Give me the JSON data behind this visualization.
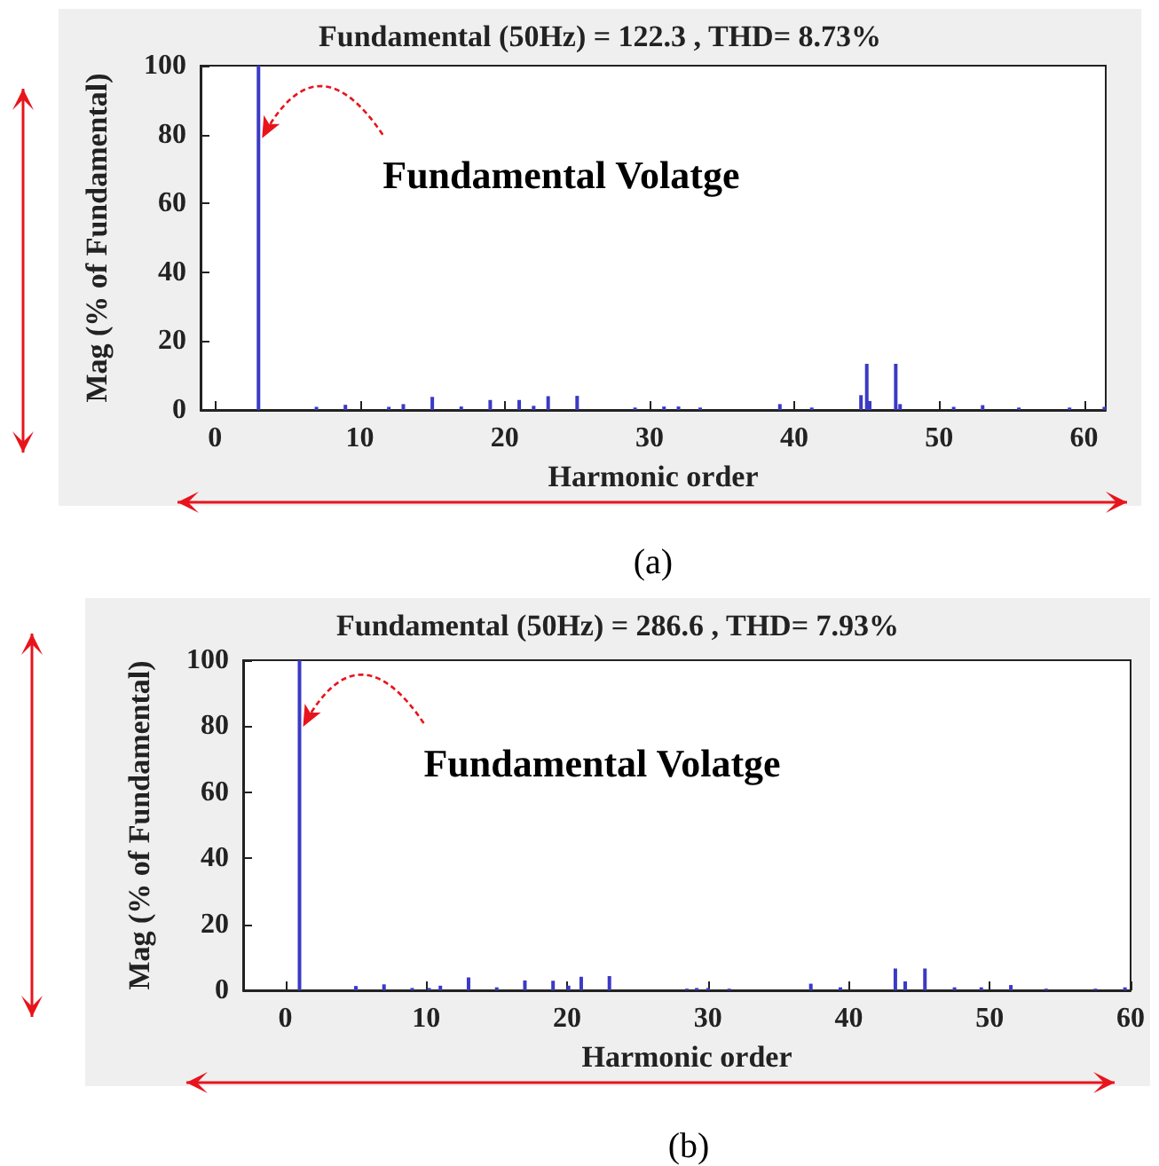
{
  "chart_data": [
    {
      "type": "bar",
      "title": "Fundamental (50Hz) = 122.3 , THD= 8.73%",
      "xlabel": "Harmonic order",
      "ylabel": "Mag (% of Fundamental)",
      "x": [
        3,
        7,
        9,
        12,
        13,
        15,
        17,
        19,
        21,
        22,
        23,
        25,
        29,
        31,
        32,
        33.5,
        39,
        41.2,
        44.6,
        45,
        45.2,
        47,
        47.3,
        51,
        53,
        55.5,
        59,
        61.4
      ],
      "values": [
        100,
        0.9,
        1.5,
        0.9,
        1.7,
        3.8,
        1,
        2.9,
        2.9,
        1.2,
        4,
        4.1,
        0.7,
        1,
        1,
        0.7,
        1.7,
        0.7,
        4.3,
        13.4,
        2.6,
        13.4,
        1.7,
        0.9,
        1.4,
        0.7,
        0.7,
        0.9
      ],
      "color": "#3a3ac4",
      "xlim": [
        -1,
        61.5
      ],
      "xticks": [
        0,
        10,
        20,
        30,
        40,
        50,
        60
      ],
      "ylim": [
        0,
        100
      ],
      "yticks": [
        0,
        20,
        40,
        60,
        80,
        100
      ],
      "grid": false,
      "annotations": [
        {
          "text": "Fundamental Volatge",
          "x": 3,
          "y": 81
        },
        "(a)"
      ]
    },
    {
      "type": "bar",
      "title": "Fundamental (50Hz) = 286.6 , THD= 7.93%",
      "xlabel": "Harmonic order",
      "ylabel": "Mag (% of Fundamental)",
      "x": [
        1,
        5,
        7,
        9,
        10.2,
        11,
        13,
        15,
        17,
        19,
        20.1,
        21,
        23,
        28.5,
        29.2,
        30,
        31.5,
        37.3,
        39.4,
        43.3,
        44,
        45.4,
        47.5,
        49.4,
        51.5,
        54,
        57.5,
        59.6
      ],
      "values": [
        100,
        1.3,
        1.8,
        0.7,
        0.7,
        1.4,
        3.9,
        0.9,
        3,
        2.9,
        1.4,
        4.1,
        4.3,
        0.5,
        0.7,
        0.7,
        0.5,
        2,
        0.9,
        6.6,
        2.7,
        6.6,
        0.9,
        0.9,
        1.6,
        0.5,
        0.5,
        0.9
      ],
      "color": "#3a3ac4",
      "xlim": [
        -3,
        60
      ],
      "xticks": [
        0,
        10,
        20,
        30,
        40,
        50,
        60
      ],
      "ylim": [
        0,
        100
      ],
      "yticks": [
        0,
        20,
        40,
        60,
        80,
        100
      ],
      "grid": false,
      "annotations": [
        {
          "text": "Fundamental Volatge",
          "x": 1,
          "y": 82
        },
        "(b)"
      ]
    }
  ]
}
